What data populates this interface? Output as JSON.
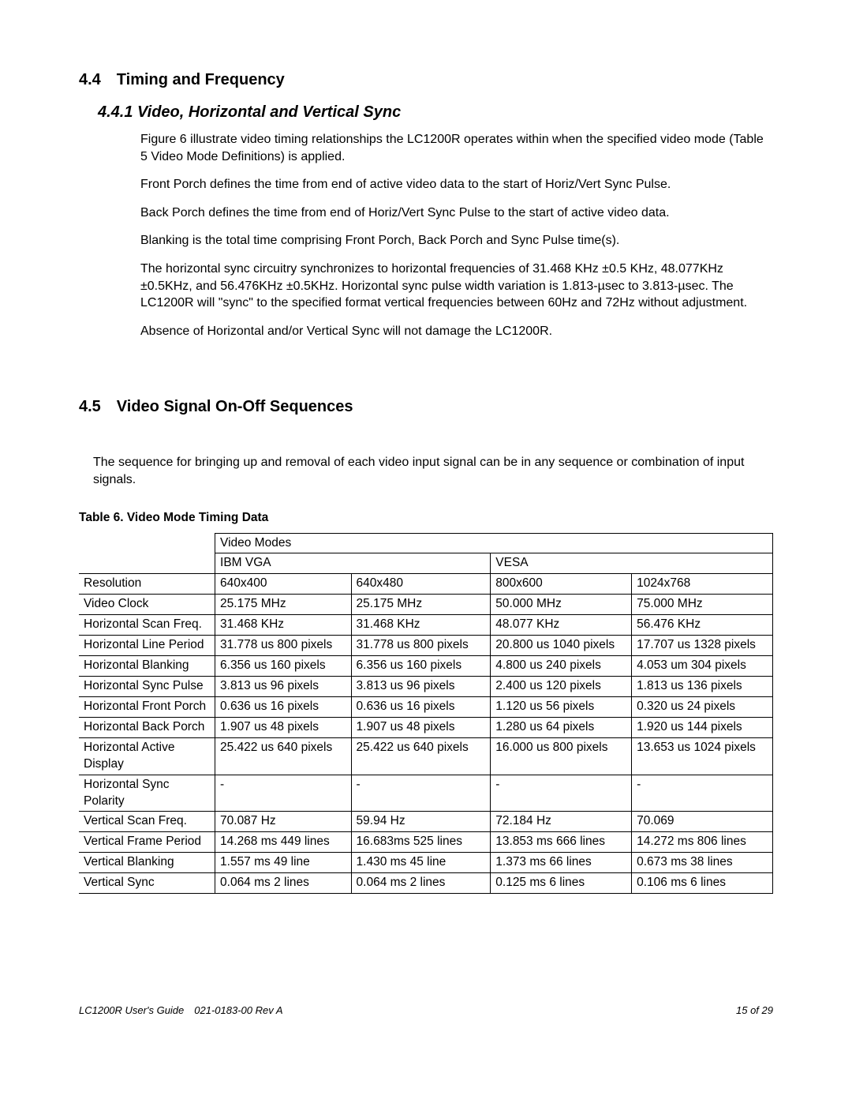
{
  "section44": {
    "heading": "4.4 Timing and Frequency",
    "sub": "4.4.1 Video, Horizontal and Vertical Sync",
    "p1": "Figure 6 illustrate video timing relationships the LC1200R operates within when the specified video mode (Table 5  Video Mode Definitions) is applied.",
    "p2": "Front Porch defines the time from end of active video data to the start of Horiz/Vert Sync Pulse.",
    "p3": "Back Porch defines the time from end of Horiz/Vert Sync Pulse to the start of active video data.",
    "p4": "Blanking is the total time comprising Front Porch, Back Porch and Sync Pulse time(s).",
    "p5": "The horizontal sync circuitry synchronizes to horizontal frequencies of 31.468 KHz ±0.5 KHz, 48.077KHz ±0.5KHz, and 56.476KHz ±0.5KHz.  Horizontal sync pulse width variation is 1.813-µsec to 3.813-µsec. The LC1200R will \"sync\" to the specified format vertical frequencies between 60Hz and 72Hz without adjustment.",
    "p6": "Absence of Horizontal and/or Vertical Sync will not damage the LC1200R."
  },
  "section45": {
    "heading": "4.5 Video Signal On-Off Sequences",
    "p1": "The sequence for bringing up and removal of each video input signal can be in any sequence or combination of input signals."
  },
  "table": {
    "caption": "Table 6.  Video Mode Timing Data",
    "header_group": "Video Modes",
    "col_headers": [
      "IBM VGA",
      "VESA"
    ],
    "rows": [
      {
        "label": "Resolution",
        "cells": [
          "640x400",
          "640x480",
          "800x600",
          "1024x768"
        ]
      },
      {
        "label": "Video Clock",
        "cells": [
          "25.175 MHz",
          "25.175 MHz",
          "50.000 MHz",
          "75.000 MHz"
        ]
      },
      {
        "label": "Horizontal Scan Freq.",
        "cells": [
          "31.468 KHz",
          "31.468 KHz",
          "48.077 KHz",
          "56.476 KHz"
        ]
      },
      {
        "label": "Horizontal Line Period",
        "cells": [
          "31.778 us  800 pixels",
          "31.778 us  800 pixels",
          "20.800 us 1040 pixels",
          "17.707 us 1328 pixels"
        ]
      },
      {
        "label": "Horizontal Blanking",
        "cells": [
          "6.356 us 160 pixels",
          "6.356 us 160 pixels",
          "4.800 us 240 pixels",
          "4.053 um 304 pixels"
        ]
      },
      {
        "label": "Horizontal Sync Pulse",
        "cells": [
          "3.813 us 96 pixels",
          "3.813 us 96 pixels",
          "2.400 us 120 pixels",
          "1.813 us 136 pixels"
        ]
      },
      {
        "label": "Horizontal Front Porch",
        "cells": [
          "0.636 us 16 pixels",
          "0.636 us 16 pixels",
          "1.120 us 56 pixels",
          "0.320 us 24 pixels"
        ]
      },
      {
        "label": "Horizontal Back Porch",
        "cells": [
          "1.907 us 48 pixels",
          "1.907 us 48 pixels",
          "1.280 us 64 pixels",
          "1.920 us 144 pixels"
        ]
      },
      {
        "label": "Horizontal Active Display",
        "cells": [
          "25.422 us 640 pixels",
          "25.422 us 640 pixels",
          "16.000 us 800 pixels",
          "13.653 us 1024 pixels"
        ]
      },
      {
        "label": "Horizontal Sync Polarity",
        "cells": [
          "-",
          "-",
          "-",
          "-"
        ]
      },
      {
        "label": "Vertical Scan Freq.",
        "cells": [
          "70.087 Hz",
          "59.94 Hz",
          "72.184 Hz",
          "70.069"
        ]
      },
      {
        "label": "Vertical Frame Period",
        "cells": [
          "14.268 ms 449 lines",
          "16.683ms 525 lines",
          "13.853 ms 666 lines",
          "14.272 ms 806 lines"
        ]
      },
      {
        "label": "Vertical Blanking",
        "cells": [
          "1.557 ms 49 line",
          "1.430 ms 45 line",
          "1.373 ms 66 lines",
          "0.673 ms 38 lines"
        ]
      },
      {
        "label": "Vertical Sync",
        "cells": [
          "0.064 ms 2 lines",
          "0.064 ms 2 lines",
          "0.125 ms 6 lines",
          "0.106 ms 6 lines"
        ]
      }
    ]
  },
  "footer": {
    "left": "LC1200R User's Guide 021-0183-00 Rev A",
    "right": "15 of  29"
  }
}
